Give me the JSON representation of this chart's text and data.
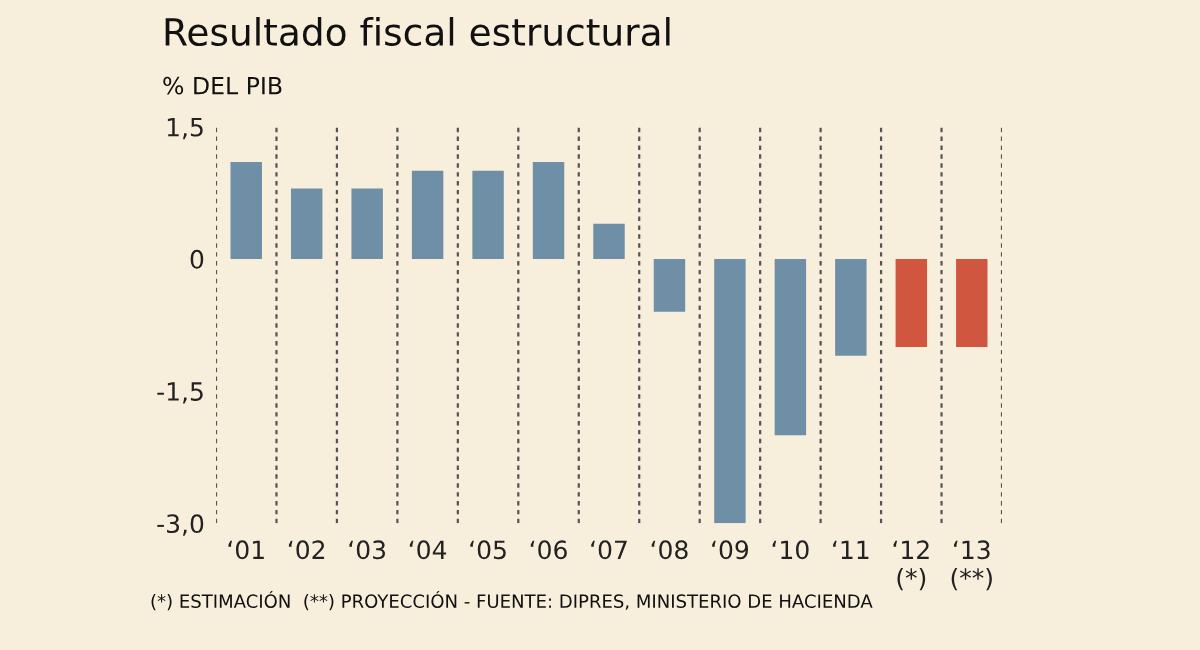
{
  "chart_data": {
    "type": "bar",
    "title": "Resultado fiscal estructural",
    "ylabel": "% DEL PIB",
    "categories": [
      "‘01",
      "‘02",
      "‘03",
      "‘04",
      "‘05",
      "‘06",
      "‘07",
      "‘08",
      "‘09",
      "‘10",
      "‘11",
      "‘12\n(*)",
      "‘13\n(**)"
    ],
    "values": [
      1.1,
      0.8,
      0.8,
      1.0,
      1.0,
      1.1,
      0.4,
      -0.6,
      -3.0,
      -2.0,
      -1.1,
      -1.0,
      -1.0
    ],
    "colors": [
      "#6f8fa6",
      "#6f8fa6",
      "#6f8fa6",
      "#6f8fa6",
      "#6f8fa6",
      "#6f8fa6",
      "#6f8fa6",
      "#6f8fa6",
      "#6f8fa6",
      "#6f8fa6",
      "#6f8fa6",
      "#d15640",
      "#d15640"
    ],
    "ylim": [
      -3.0,
      1.5
    ],
    "yticks": [
      {
        "value": 1.5,
        "label": "1,5"
      },
      {
        "value": 0,
        "label": "0"
      },
      {
        "value": -1.5,
        "label": "-1,5"
      },
      {
        "value": -3.0,
        "label": "-3,0"
      }
    ],
    "grid": "x",
    "annotations": [
      "(*) ESTIMACIÓN  (**) PROYECCIÓN - FUENTE: DIPRES, MINISTERIO DE HACIENDA"
    ]
  }
}
